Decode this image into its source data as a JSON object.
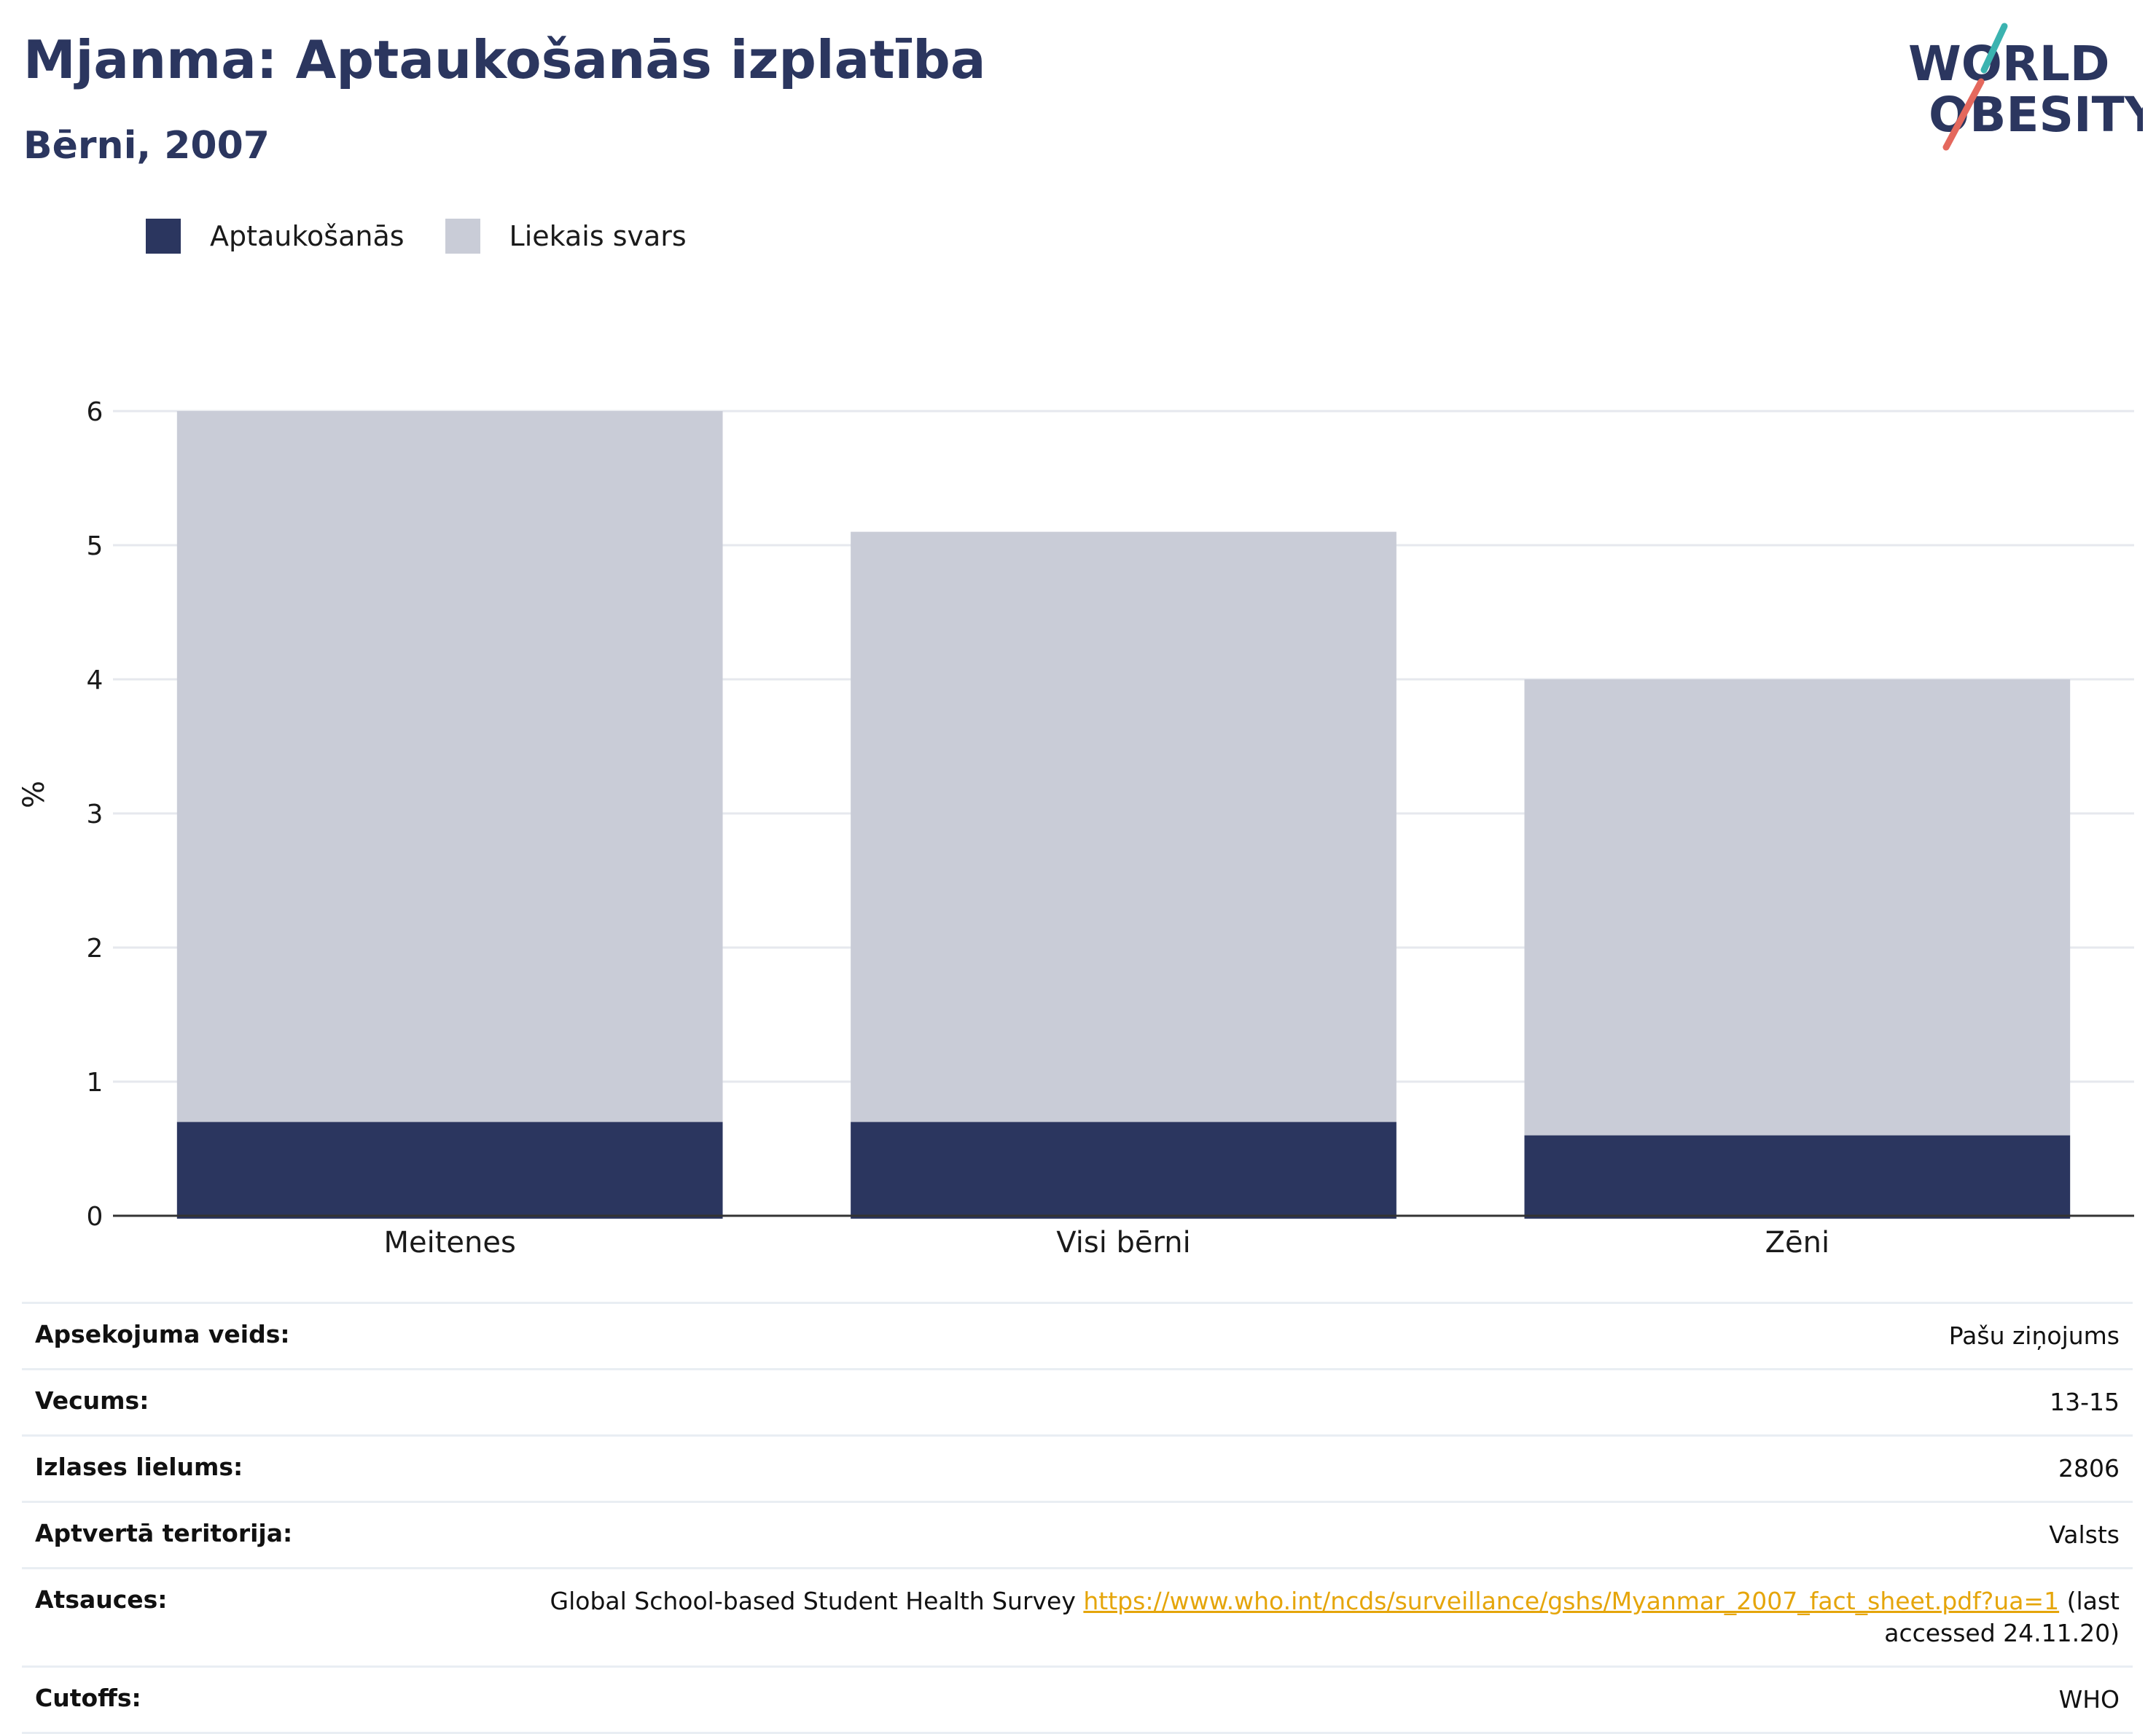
{
  "header": {
    "title": "Mjanma: Aptaukošanās izplatība",
    "subtitle": "Bērni, 2007"
  },
  "logo": {
    "line1": "WORLD",
    "line2": "OBESITY",
    "accent_teal": "#3bb3b0",
    "accent_coral": "#e4685d"
  },
  "legend": [
    {
      "label": "Aptaukošanās",
      "color": "#2b365f"
    },
    {
      "label": "Liekais svars",
      "color": "#c9ccd7"
    }
  ],
  "chart_data": {
    "type": "bar",
    "stacked": true,
    "categories": [
      "Meitenes",
      "Visi bērni",
      "Zēni"
    ],
    "series": [
      {
        "name": "Aptaukošanās",
        "values": [
          0.7,
          0.7,
          0.6
        ],
        "color": "#2b365f"
      },
      {
        "name": "Liekais svars",
        "values": [
          5.3,
          4.4,
          3.4
        ],
        "color": "#c9ccd7"
      }
    ],
    "ylabel": "%",
    "ylim": [
      0,
      6
    ],
    "yticks": [
      0,
      1,
      2,
      3,
      4,
      5,
      6
    ],
    "grid": true
  },
  "info": {
    "survey_type": {
      "label": "Apsekojuma veids:",
      "value": "Pašu ziņojums"
    },
    "age": {
      "label": "Vecums:",
      "value": "13-15"
    },
    "sample_size": {
      "label": "Izlases lielums:",
      "value": "2806"
    },
    "area": {
      "label": "Aptvertā teritorija:",
      "value": "Valsts"
    },
    "references": {
      "label": "Atsauces:",
      "text_before": "Global School-based Student Health Survey",
      "link": "https://www.who.int/ncds/surveillance/gshs/Myanmar_2007_fact_sheet.pdf?ua=1",
      "text_after": "(last accessed 24.11.20)"
    },
    "cutoffs": {
      "label": "Cutoffs:",
      "value": "WHO"
    }
  }
}
